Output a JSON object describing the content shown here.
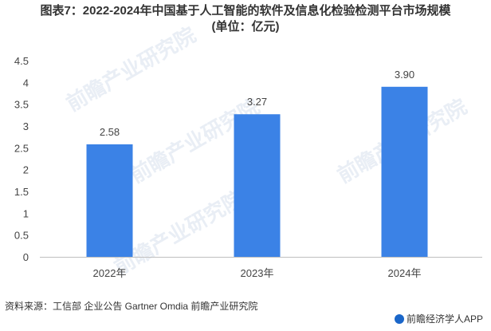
{
  "title_line1": "图表7：2022-2024年中国基于人工智能的软件及信息化检验检测平台市场规模",
  "title_line2": "(单位：亿元)",
  "chart_data": {
    "type": "bar",
    "title": "图表7：2022-2024年中国基于人工智能的软件及信息化检验检测平台市场规模 (单位：亿元)",
    "categories": [
      "2022年",
      "2023年",
      "2024年"
    ],
    "values": [
      2.58,
      3.27,
      3.9
    ],
    "value_labels": [
      "2.58",
      "3.27",
      "3.90"
    ],
    "ylim": [
      0,
      4.5
    ],
    "yticks": [
      0,
      0.5,
      1,
      1.5,
      2,
      2.5,
      3,
      3.5,
      4,
      4.5
    ],
    "ytick_labels": [
      "0",
      "0.5",
      "1",
      "1.5",
      "2",
      "2.5",
      "3",
      "3.5",
      "4",
      "4.5"
    ],
    "xlabel": "",
    "ylabel": "",
    "grid": false,
    "bar_color": "#3b82e6"
  },
  "source": "资料来源：工信部 企业公告 Gartner Omdia 前瞻产业研究院",
  "brand": "前瞻经济学人APP",
  "watermarks": [
    "前瞻产业研究院",
    "前瞻产业研究院",
    "前瞻产业研究院",
    "前瞻产业研究院"
  ]
}
